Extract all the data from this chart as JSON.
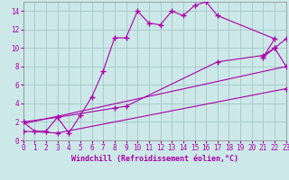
{
  "xlabel": "Windchill (Refroidissement éolien,°C)",
  "bg_color": "#cce8e8",
  "line_color": "#aa00aa",
  "grid_color": "#aacccc",
  "xlim": [
    0,
    23
  ],
  "ylim": [
    0,
    15
  ],
  "xticks": [
    0,
    1,
    2,
    3,
    4,
    5,
    6,
    7,
    8,
    9,
    10,
    11,
    12,
    13,
    14,
    15,
    16,
    17,
    18,
    19,
    20,
    21,
    22,
    23
  ],
  "yticks": [
    0,
    2,
    4,
    6,
    8,
    10,
    12,
    14
  ],
  "line1_x": [
    0,
    1,
    2,
    3,
    4,
    5,
    6,
    7,
    8,
    9,
    10,
    11,
    12,
    13,
    14,
    15,
    16,
    17,
    22,
    21,
    22,
    23
  ],
  "line1_y": [
    2.0,
    1.0,
    1.0,
    2.5,
    0.8,
    2.7,
    4.7,
    7.5,
    11.1,
    11.1,
    14.0,
    12.7,
    12.5,
    14.0,
    13.5,
    14.6,
    15.0,
    13.5,
    11.0,
    9.0,
    10.0,
    8.0
  ],
  "line2_x": [
    0,
    3,
    8,
    9,
    17,
    21,
    22,
    23
  ],
  "line2_y": [
    2.0,
    2.5,
    3.5,
    3.7,
    8.5,
    9.2,
    10.0,
    11.0
  ],
  "line3_x": [
    0,
    3,
    23
  ],
  "line3_y": [
    1.0,
    0.8,
    5.6
  ],
  "line4_x": [
    0,
    23
  ],
  "line4_y": [
    1.8,
    8.0
  ]
}
